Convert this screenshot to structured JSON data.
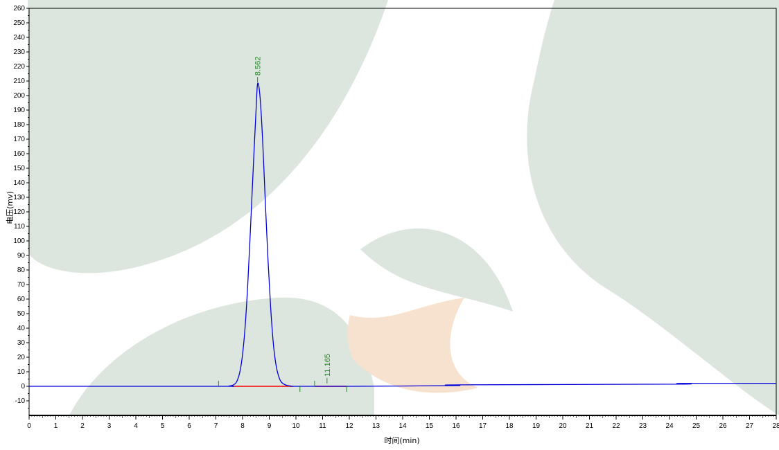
{
  "chart_data": {
    "type": "line",
    "title": "",
    "xlabel": "时间(min)",
    "ylabel": "电压(mv)",
    "xlim": [
      0,
      28
    ],
    "ylim": [
      -20,
      260
    ],
    "x_ticks": [
      "0",
      "1",
      "2",
      "3",
      "4",
      "5",
      "6",
      "7",
      "8",
      "9",
      "10",
      "11",
      "12",
      "13",
      "14",
      "15",
      "16",
      "17",
      "18",
      "19",
      "20",
      "21",
      "22",
      "23",
      "24",
      "25",
      "26",
      "27",
      "28"
    ],
    "y_ticks": [
      "260",
      "250",
      "240",
      "230",
      "220",
      "210",
      "200",
      "190",
      "180",
      "170",
      "160",
      "150",
      "140",
      "130",
      "120",
      "110",
      "100",
      "90",
      "80",
      "70",
      "60",
      "50",
      "40",
      "30",
      "20",
      "10",
      "0",
      "-10"
    ],
    "grid": false,
    "series": [
      {
        "color": "#0000dd",
        "x": [
          0,
          7.0,
          7.5,
          7.7,
          7.8,
          7.9,
          8.0,
          8.1,
          8.2,
          8.3,
          8.4,
          8.5,
          8.562,
          8.65,
          8.75,
          8.85,
          8.95,
          9.05,
          9.15,
          9.25,
          9.35,
          9.45,
          9.6,
          9.8,
          10.0,
          12.0,
          16.0,
          16.1,
          24.3,
          24.4,
          28.0
        ],
        "y": [
          0,
          0,
          0.2,
          1.5,
          4,
          10,
          22,
          42,
          72,
          110,
          150,
          188,
          208,
          200,
          170,
          128,
          88,
          55,
          30,
          15,
          7,
          3,
          1,
          0.2,
          0,
          0,
          0.5,
          1,
          1.5,
          2,
          2
        ]
      }
    ],
    "baselines": [
      {
        "color": "#ff0000",
        "x": [
          7.6,
          9.9
        ]
      },
      {
        "color": "#ff0000",
        "x": [
          10.7,
          11.9
        ]
      }
    ],
    "peak_markers": [
      {
        "x": 7.1,
        "dir": "up"
      },
      {
        "x": 10.15,
        "dir": "down"
      },
      {
        "x": 10.7,
        "dir": "up"
      },
      {
        "x": 11.9,
        "dir": "down"
      }
    ],
    "annotations": [
      {
        "text": "8.562",
        "x": 8.562,
        "y": 208,
        "color": "#228822"
      },
      {
        "text": "11.165",
        "x": 11.165,
        "y": 1,
        "color": "#228822"
      }
    ]
  }
}
